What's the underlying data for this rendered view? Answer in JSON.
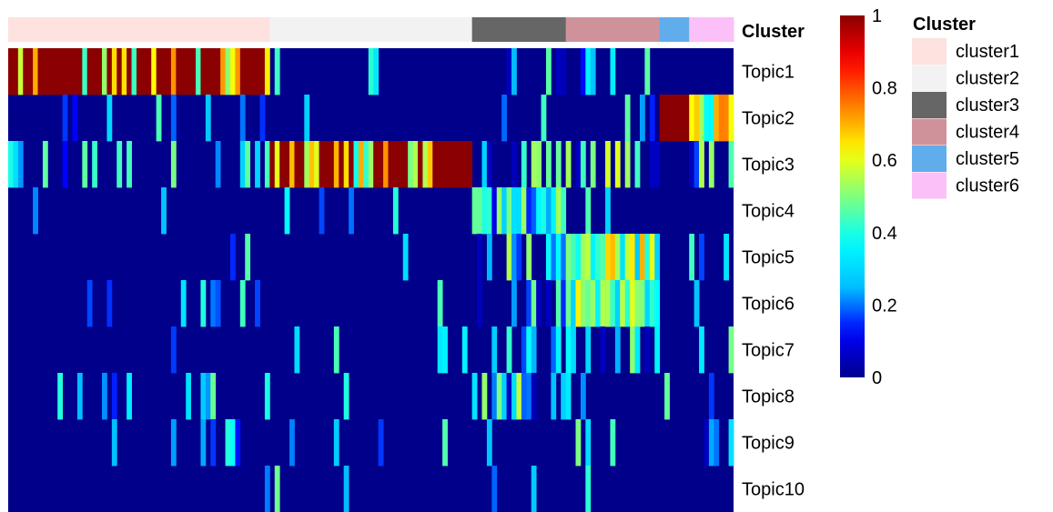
{
  "chart_data": {
    "type": "heatmap",
    "title": "",
    "annotation_title": "Cluster",
    "rows": [
      "Topic1",
      "Topic2",
      "Topic3",
      "Topic4",
      "Topic5",
      "Topic6",
      "Topic7",
      "Topic8",
      "Topic9",
      "Topic10"
    ],
    "colorbar": {
      "min": 0,
      "max": 1,
      "ticks": [
        1,
        0.8,
        0.6,
        0.4,
        0.2,
        0
      ],
      "colormap": [
        "#00008B",
        "#0000FF",
        "#00BFFF",
        "#00FFFF",
        "#7FFF7F",
        "#FFFF00",
        "#FF7F00",
        "#FF0000",
        "#8B0000"
      ]
    },
    "legend": {
      "title": "Cluster",
      "placement": "right",
      "items": [
        {
          "label": "cluster1",
          "color": "#FDE2DF"
        },
        {
          "label": "cluster2",
          "color": "#F2F2F2"
        },
        {
          "label": "cluster3",
          "color": "#666666"
        },
        {
          "label": "cluster4",
          "color": "#D0929A"
        },
        {
          "label": "cluster5",
          "color": "#61ADEB"
        },
        {
          "label": "cluster6",
          "color": "#FBC0F8"
        }
      ]
    },
    "clusters": [
      {
        "name": "cluster1",
        "n_cells": 53
      },
      {
        "name": "cluster2",
        "n_cells": 41
      },
      {
        "name": "cluster3",
        "n_cells": 19
      },
      {
        "name": "cluster4",
        "n_cells": 19
      },
      {
        "name": "cluster5",
        "n_cells": 6
      },
      {
        "name": "cluster6",
        "n_cells": 9
      }
    ],
    "cluster_topic_mean": [
      [
        0.88,
        0.04,
        0.1,
        0.04,
        0.03,
        0.03,
        0.02,
        0.06,
        0.04,
        0.01
      ],
      [
        0.03,
        0.02,
        0.93,
        0.02,
        0.02,
        0.02,
        0.03,
        0.02,
        0.02,
        0.01
      ],
      [
        0.18,
        0.03,
        0.15,
        0.32,
        0.2,
        0.2,
        0.1,
        0.3,
        0.03,
        0.01
      ],
      [
        0.06,
        0.05,
        0.2,
        0.03,
        0.48,
        0.48,
        0.25,
        0.04,
        0.05,
        0.03
      ],
      [
        0.08,
        0.92,
        0.04,
        0.02,
        0.03,
        0.03,
        0.02,
        0.03,
        0.03,
        0.02
      ],
      [
        0.1,
        0.55,
        0.14,
        0.02,
        0.05,
        0.05,
        0.02,
        0.05,
        0.3,
        0.01
      ]
    ]
  }
}
